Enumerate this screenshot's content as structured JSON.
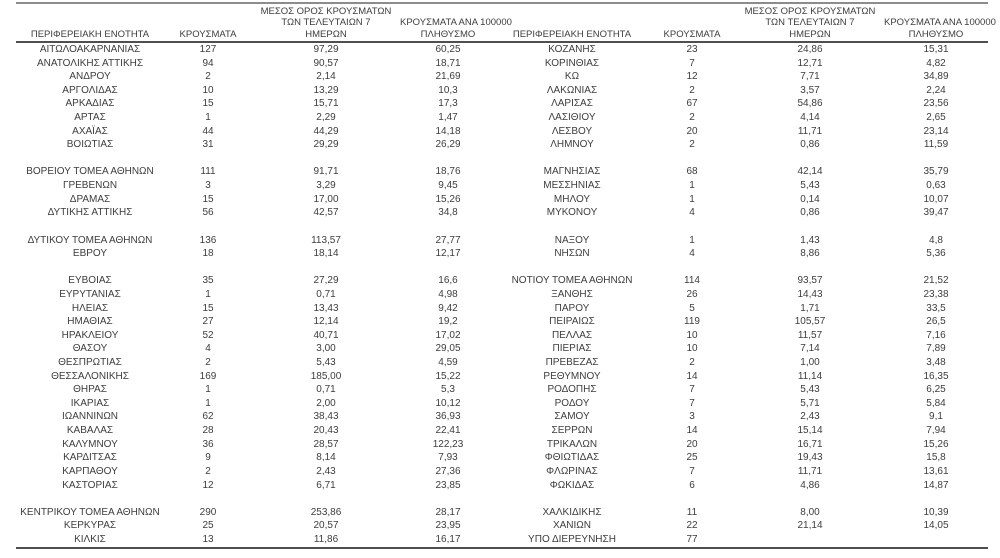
{
  "table": {
    "colors": {
      "text": "#3d3d3d",
      "rule_dark": "#4f4f4f",
      "rule_light": "#8c8c8c"
    },
    "header": {
      "region": "ΠΕΡΙΦΕΡΕΙΑΚΗ ΕΝΟΤΗΤΑ",
      "cases": "ΚΡΟΥΣΜΑΤΑ",
      "avg7_line1": "ΜΕΣΟΣ ΟΡΟΣ ΚΡΟΥΣΜΑΤΩΝ",
      "avg7_line2": "ΤΩΝ ΤΕΛΕΥΤΑΙΩΝ 7",
      "avg7_line3": "ΗΜΕΡΩΝ",
      "per100k_line1": "ΚΡΟΥΣΜΑΤΑ ΑΝΑ 100000",
      "per100k_line2": "ΠΛΗΘΥΣΜΟ"
    },
    "left_rows": [
      [
        "ΑΙΤΩΛΟΑΚΑΡΝΑΝΙΑΣ",
        "127",
        "97,29",
        "60,25"
      ],
      [
        "ΑΝΑΤΟΛΙΚΗΣ ΑΤΤΙΚΗΣ",
        "94",
        "90,57",
        "18,71"
      ],
      [
        "ΑΝΔΡΟΥ",
        "2",
        "2,14",
        "21,69"
      ],
      [
        "ΑΡΓΟΛΙΔΑΣ",
        "10",
        "13,29",
        "10,3"
      ],
      [
        "ΑΡΚΑΔΙΑΣ",
        "15",
        "15,71",
        "17,3"
      ],
      [
        "ΑΡΤΑΣ",
        "1",
        "2,29",
        "1,47"
      ],
      [
        "ΑΧΑΪΑΣ",
        "44",
        "44,29",
        "14,18"
      ],
      [
        "ΒΟΙΩΤΙΑΣ",
        "31",
        "29,29",
        "26,29"
      ],
      null,
      [
        "ΒΟΡΕΙΟΥ ΤΟΜΕΑ ΑΘΗΝΩΝ",
        "111",
        "91,71",
        "18,76"
      ],
      [
        "ΓΡΕΒΕΝΩΝ",
        "3",
        "3,29",
        "9,45"
      ],
      [
        "ΔΡΑΜΑΣ",
        "15",
        "17,00",
        "15,26"
      ],
      [
        "ΔΥΤΙΚΗΣ ΑΤΤΙΚΗΣ",
        "56",
        "42,57",
        "34,8"
      ],
      null,
      [
        "ΔΥΤΙΚΟΥ ΤΟΜΕΑ ΑΘΗΝΩΝ",
        "136",
        "113,57",
        "27,77"
      ],
      [
        "ΕΒΡΟΥ",
        "18",
        "18,14",
        "12,17"
      ],
      null,
      [
        "ΕΥΒΟΙΑΣ",
        "35",
        "27,29",
        "16,6"
      ],
      [
        "ΕΥΡΥΤΑΝΙΑΣ",
        "1",
        "0,71",
        "4,98"
      ],
      [
        "ΗΛΕΙΑΣ",
        "15",
        "13,43",
        "9,42"
      ],
      [
        "ΗΜΑΘΙΑΣ",
        "27",
        "12,14",
        "19,2"
      ],
      [
        "ΗΡΑΚΛΕΙΟΥ",
        "52",
        "40,71",
        "17,02"
      ],
      [
        "ΘΑΣΟΥ",
        "4",
        "3,00",
        "29,05"
      ],
      [
        "ΘΕΣΠΡΩΤΙΑΣ",
        "2",
        "5,43",
        "4,59"
      ],
      [
        "ΘΕΣΣΑΛΟΝΙΚΗΣ",
        "169",
        "185,00",
        "15,22"
      ],
      [
        "ΘΗΡΑΣ",
        "1",
        "0,71",
        "5,3"
      ],
      [
        "ΙΚΑΡΙΑΣ",
        "1",
        "2,00",
        "10,12"
      ],
      [
        "ΙΩΑΝΝΙΝΩΝ",
        "62",
        "38,43",
        "36,93"
      ],
      [
        "ΚΑΒΑΛΑΣ",
        "28",
        "20,43",
        "22,41"
      ],
      [
        "ΚΑΛΥΜΝΟΥ",
        "36",
        "28,57",
        "122,23"
      ],
      [
        "ΚΑΡΔΙΤΣΑΣ",
        "9",
        "8,14",
        "7,93"
      ],
      [
        "ΚΑΡΠΑΘΟΥ",
        "2",
        "2,43",
        "27,36"
      ],
      [
        "ΚΑΣΤΟΡΙΑΣ",
        "12",
        "6,71",
        "23,85"
      ],
      null,
      [
        "ΚΕΝΤΡΙΚΟΥ ΤΟΜΕΑ ΑΘΗΝΩΝ",
        "290",
        "253,86",
        "28,17"
      ],
      [
        "ΚΕΡΚΥΡΑΣ",
        "25",
        "20,57",
        "23,95"
      ],
      [
        "ΚΙΛΚΙΣ",
        "13",
        "11,86",
        "16,17"
      ]
    ],
    "right_rows": [
      [
        "ΚΟΖΑΝΗΣ",
        "23",
        "24,86",
        "15,31"
      ],
      [
        "ΚΟΡΙΝΘΙΑΣ",
        "7",
        "12,71",
        "4,82"
      ],
      [
        "ΚΩ",
        "12",
        "7,71",
        "34,89"
      ],
      [
        "ΛΑΚΩΝΙΑΣ",
        "2",
        "3,57",
        "2,24"
      ],
      [
        "ΛΑΡΙΣΑΣ",
        "67",
        "54,86",
        "23,56"
      ],
      [
        "ΛΑΣΙΘΙΟΥ",
        "2",
        "4,14",
        "2,65"
      ],
      [
        "ΛΕΣΒΟΥ",
        "20",
        "11,71",
        "23,14"
      ],
      [
        "ΛΗΜΝΟΥ",
        "2",
        "0,86",
        "11,59"
      ],
      null,
      [
        "ΜΑΓΝΗΣΙΑΣ",
        "68",
        "42,14",
        "35,79"
      ],
      [
        "ΜΕΣΣΗΝΙΑΣ",
        "1",
        "5,43",
        "0,63"
      ],
      [
        "ΜΗΛΟΥ",
        "1",
        "0,14",
        "10,07"
      ],
      [
        "ΜΥΚΟΝΟΥ",
        "4",
        "0,86",
        "39,47"
      ],
      null,
      [
        "ΝΑΞΟΥ",
        "1",
        "1,43",
        "4,8"
      ],
      [
        "ΝΗΣΩΝ",
        "4",
        "8,86",
        "5,36"
      ],
      null,
      [
        "ΝΟΤΙΟΥ ΤΟΜΕΑ ΑΘΗΝΩΝ",
        "114",
        "93,57",
        "21,52"
      ],
      [
        "ΞΑΝΘΗΣ",
        "26",
        "14,43",
        "23,38"
      ],
      [
        "ΠΑΡΟΥ",
        "5",
        "1,71",
        "33,5"
      ],
      [
        "ΠΕΙΡΑΙΩΣ",
        "119",
        "105,57",
        "26,5"
      ],
      [
        "ΠΕΛΛΑΣ",
        "10",
        "11,57",
        "7,16"
      ],
      [
        "ΠΙΕΡΙΑΣ",
        "10",
        "7,14",
        "7,89"
      ],
      [
        "ΠΡΕΒΕΖΑΣ",
        "2",
        "1,00",
        "3,48"
      ],
      [
        "ΡΕΘΥΜΝΟΥ",
        "14",
        "11,14",
        "16,35"
      ],
      [
        "ΡΟΔΟΠΗΣ",
        "7",
        "5,43",
        "6,25"
      ],
      [
        "ΡΟΔΟΥ",
        "7",
        "5,71",
        "5,84"
      ],
      [
        "ΣΑΜΟΥ",
        "3",
        "2,43",
        "9,1"
      ],
      [
        "ΣΕΡΡΩΝ",
        "14",
        "15,14",
        "7,94"
      ],
      [
        "ΤΡΙΚΑΛΩΝ",
        "20",
        "16,71",
        "15,26"
      ],
      [
        "ΦΘΙΩΤΙΔΑΣ",
        "25",
        "19,43",
        "15,8"
      ],
      [
        "ΦΛΩΡΙΝΑΣ",
        "7",
        "11,71",
        "13,61"
      ],
      [
        "ΦΩΚΙΔΑΣ",
        "6",
        "4,86",
        "14,87"
      ],
      null,
      [
        "ΧΑΛΚΙΔΙΚΗΣ",
        "11",
        "8,00",
        "10,39"
      ],
      [
        "ΧΑΝΙΩΝ",
        "22",
        "21,14",
        "14,05"
      ],
      [
        "ΥΠΟ ΔΙΕΡΕΥΝΗΣΗ",
        "77",
        "",
        ""
      ]
    ]
  }
}
